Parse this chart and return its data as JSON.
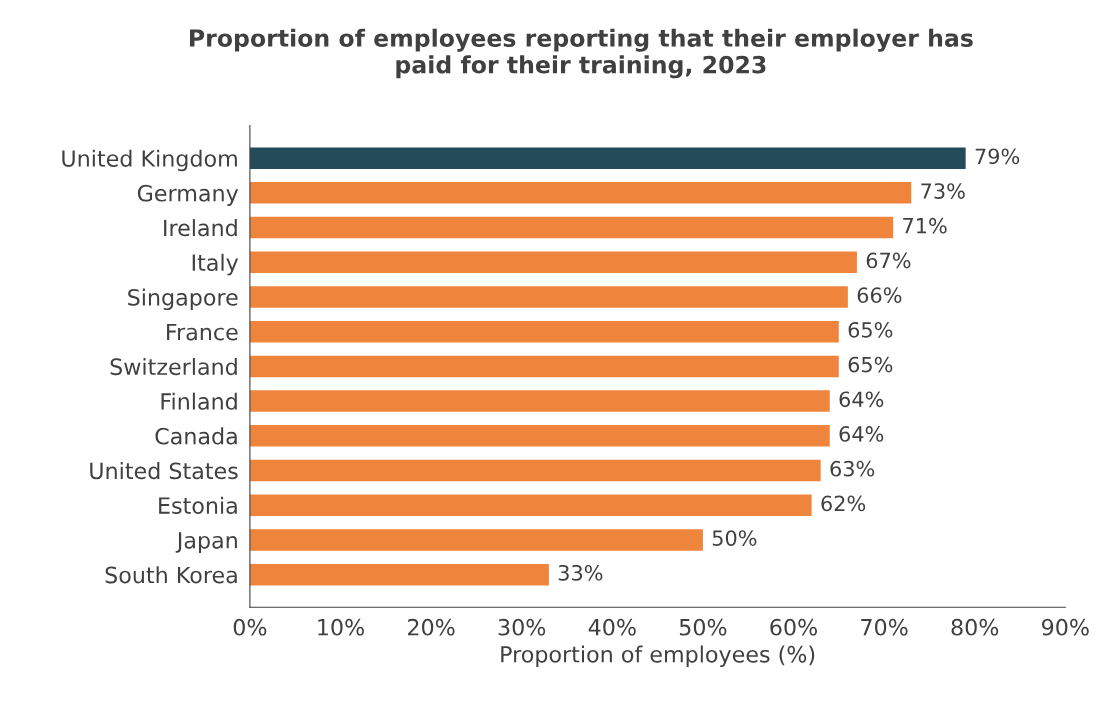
{
  "chart_data": {
    "type": "bar",
    "orientation": "horizontal",
    "title": "Proportion of employees reporting that their employer has\npaid for their training, 2023",
    "xlabel": "Proportion of employees (%)",
    "categories": [
      "United Kingdom",
      "Germany",
      "Ireland",
      "Italy",
      "Singapore",
      "France",
      "Switzerland",
      "Finland",
      "Canada",
      "United States",
      "Estonia",
      "Japan",
      "South Korea"
    ],
    "values": [
      79,
      73,
      71,
      67,
      66,
      65,
      65,
      64,
      64,
      63,
      62,
      50,
      33
    ],
    "colors": [
      "#244b59",
      "#ef843c",
      "#ef843c",
      "#ef843c",
      "#ef843c",
      "#ef843c",
      "#ef843c",
      "#ef843c",
      "#ef843c",
      "#ef843c",
      "#ef843c",
      "#ef843c",
      "#ef843c"
    ],
    "value_labels": [
      "79%",
      "73%",
      "71%",
      "67%",
      "66%",
      "65%",
      "65%",
      "64%",
      "64%",
      "63%",
      "62%",
      "50%",
      "33%"
    ],
    "xlim": [
      0,
      90
    ],
    "xticks": [
      {
        "value": 0,
        "label": "0%"
      },
      {
        "value": 10,
        "label": "10%"
      },
      {
        "value": 20,
        "label": "20%"
      },
      {
        "value": 30,
        "label": "30%"
      },
      {
        "value": 40,
        "label": "40%"
      },
      {
        "value": 50,
        "label": "50%"
      },
      {
        "value": 60,
        "label": "60%"
      },
      {
        "value": 70,
        "label": "70%"
      },
      {
        "value": 80,
        "label": "80%"
      },
      {
        "value": 90,
        "label": "90%"
      }
    ],
    "grid": false,
    "legend": false
  }
}
